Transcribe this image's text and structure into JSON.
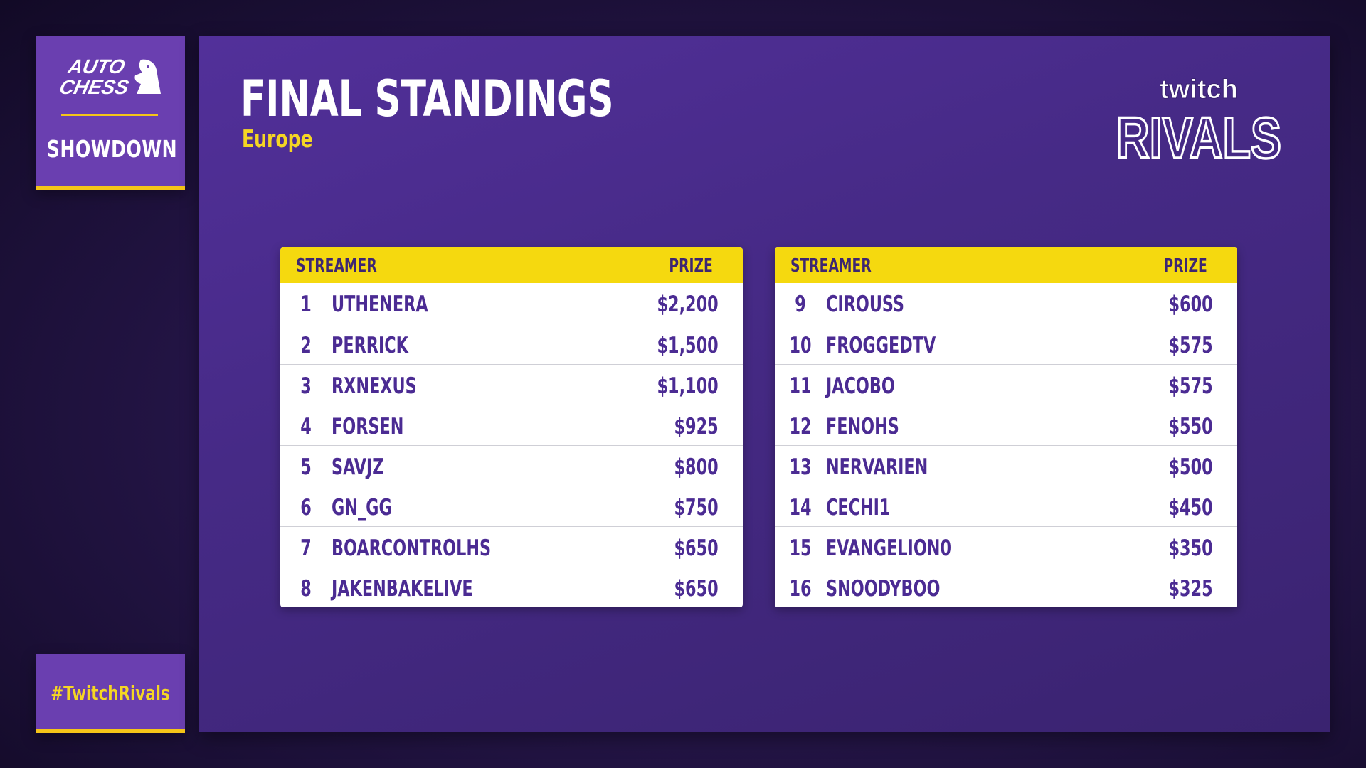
{
  "left_badge": {
    "logo_text": [
      "AUTO",
      "CHESS"
    ],
    "title": "SHOWDOWN"
  },
  "hashtag": "#TwitchRivals",
  "header": {
    "title": "FINAL STANDINGS",
    "subtitle": "Europe",
    "brand_logo_text": [
      "twitch",
      "RIVALS"
    ]
  },
  "columns": {
    "streamer": "STREAMER",
    "prize": "PRIZE"
  },
  "standings_left": [
    {
      "rank": "1",
      "name": "UTHENERA",
      "prize": "$2,200"
    },
    {
      "rank": "2",
      "name": "PERRICK",
      "prize": "$1,500"
    },
    {
      "rank": "3",
      "name": "RXNEXUS",
      "prize": "$1,100"
    },
    {
      "rank": "4",
      "name": "FORSEN",
      "prize": "$925"
    },
    {
      "rank": "5",
      "name": "SAVJZ",
      "prize": "$800"
    },
    {
      "rank": "6",
      "name": "GN_GG",
      "prize": "$750"
    },
    {
      "rank": "7",
      "name": "BOARCONTROLHS",
      "prize": "$650"
    },
    {
      "rank": "8",
      "name": "JAKENBAKELIVE",
      "prize": "$650"
    }
  ],
  "standings_right": [
    {
      "rank": "9",
      "name": "CIROUSS",
      "prize": "$600"
    },
    {
      "rank": "10",
      "name": "FROGGEDTV",
      "prize": "$575"
    },
    {
      "rank": "11",
      "name": "JACOBO",
      "prize": "$575"
    },
    {
      "rank": "12",
      "name": "FENOHS",
      "prize": "$550"
    },
    {
      "rank": "13",
      "name": "NERVARIEN",
      "prize": "$500"
    },
    {
      "rank": "14",
      "name": "CECHI1",
      "prize": "$450"
    },
    {
      "rank": "15",
      "name": "EVANGELION0",
      "prize": "$350"
    },
    {
      "rank": "16",
      "name": "SNOODYBOO",
      "prize": "$325"
    }
  ],
  "colors": {
    "accent_yellow": "#f5d90f",
    "panel_purple": "#4a2b8c",
    "badge_purple": "#6a3fb0",
    "row_text": "#4b2b93"
  }
}
